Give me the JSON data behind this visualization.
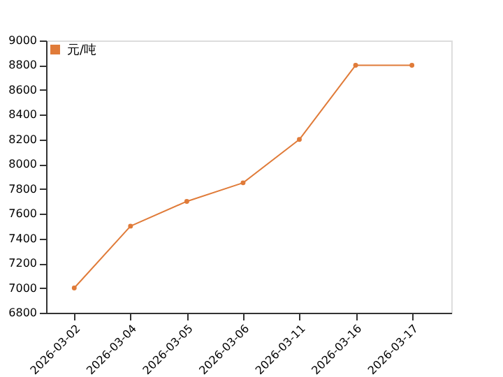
{
  "chart_data": {
    "type": "line",
    "categories": [
      "2026-03-02",
      "2026-03-04",
      "2026-03-05",
      "2026-03-06",
      "2026-03-11",
      "2026-03-16",
      "2026-03-17"
    ],
    "series": [
      {
        "name": "元/吨",
        "color": "#e07b39",
        "values": [
          7000,
          7500,
          7700,
          7850,
          8200,
          8800,
          8800
        ]
      }
    ],
    "ylim": [
      6800,
      9000
    ],
    "yticks": [
      6800,
      7000,
      7200,
      7400,
      7600,
      7800,
      8000,
      8200,
      8400,
      8600,
      8800,
      9000
    ],
    "grid": false,
    "legend": "top left",
    "marker": "circle",
    "line_style": "solid"
  }
}
